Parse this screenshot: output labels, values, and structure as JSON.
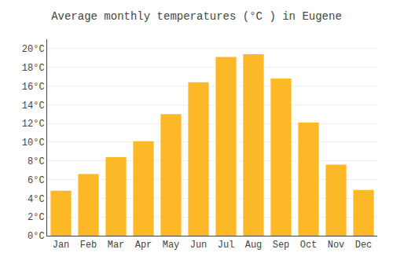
{
  "chart_data": {
    "type": "bar",
    "title": "Average monthly temperatures (°C ) in Eugene",
    "categories": [
      "Jan",
      "Feb",
      "Mar",
      "Apr",
      "May",
      "Jun",
      "Jul",
      "Aug",
      "Sep",
      "Oct",
      "Nov",
      "Dec"
    ],
    "values": [
      4.8,
      6.6,
      8.4,
      10.1,
      13.0,
      16.4,
      19.1,
      19.4,
      16.8,
      12.1,
      7.6,
      4.9
    ],
    "color": "#FDB827",
    "ylim": [
      0,
      21
    ],
    "yticks": [
      {
        "value": 0,
        "label": "0°C"
      },
      {
        "value": 2,
        "label": "2°C"
      },
      {
        "value": 4,
        "label": "4°C"
      },
      {
        "value": 6,
        "label": "6°C"
      },
      {
        "value": 8,
        "label": "8°C"
      },
      {
        "value": 10,
        "label": "10°C"
      },
      {
        "value": 12,
        "label": "12°C"
      },
      {
        "value": 14,
        "label": "14°C"
      },
      {
        "value": 16,
        "label": "16°C"
      },
      {
        "value": 18,
        "label": "18°C"
      },
      {
        "value": 20,
        "label": "20°C"
      }
    ],
    "grid": true
  }
}
